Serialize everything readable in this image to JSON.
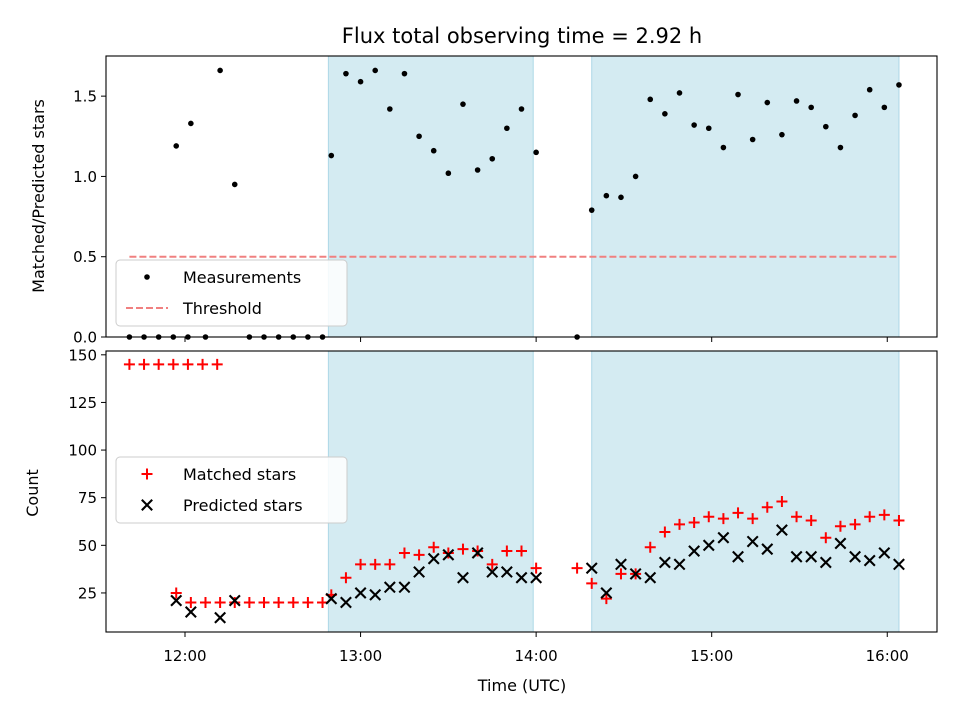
{
  "chart_data": {
    "type": "scatter",
    "title": "Flux total observing time = 2.92 h",
    "xlabel": "Time (UTC)",
    "x_ticks": [
      "12:00",
      "13:00",
      "14:00",
      "15:00",
      "16:00"
    ],
    "xlim": [
      "11:33",
      "16:17"
    ],
    "shaded_intervals": [
      [
        "12:49",
        "13:59"
      ],
      [
        "14:19",
        "16:04"
      ]
    ],
    "shade_color": "#add8e6",
    "panels": [
      {
        "id": "ratio",
        "ylabel": "Matched/Predicted stars",
        "ylim": [
          0,
          1.75
        ],
        "y_ticks": [
          "0.0",
          "0.5",
          "1.0",
          "1.5"
        ],
        "legend": {
          "position": "lower-left",
          "entries": [
            "Measurements",
            "Threshold"
          ]
        },
        "series": [
          {
            "name": "Measurements",
            "marker": "dot",
            "color": "#000000",
            "points": [
              [
                "11:41",
                0.0
              ],
              [
                "11:46",
                0.0
              ],
              [
                "11:51",
                0.0
              ],
              [
                "11:56",
                0.0
              ],
              [
                "12:01",
                0.0
              ],
              [
                "11:57",
                1.19
              ],
              [
                "12:02",
                1.33
              ],
              [
                "12:07",
                0.0
              ],
              [
                "12:12",
                1.66
              ],
              [
                "12:17",
                0.95
              ],
              [
                "12:22",
                0.0
              ],
              [
                "12:27",
                0.0
              ],
              [
                "12:32",
                0.0
              ],
              [
                "12:37",
                0.0
              ],
              [
                "12:42",
                0.0
              ],
              [
                "12:47",
                0.0
              ],
              [
                "12:50",
                1.13
              ],
              [
                "12:55",
                1.64
              ],
              [
                "13:00",
                1.59
              ],
              [
                "13:05",
                1.66
              ],
              [
                "13:10",
                1.42
              ],
              [
                "13:15",
                1.64
              ],
              [
                "13:20",
                1.25
              ],
              [
                "13:25",
                1.16
              ],
              [
                "13:30",
                1.02
              ],
              [
                "13:35",
                1.45
              ],
              [
                "13:40",
                1.04
              ],
              [
                "13:45",
                1.11
              ],
              [
                "13:50",
                1.3
              ],
              [
                "13:55",
                1.42
              ],
              [
                "14:00",
                1.15
              ],
              [
                "14:14",
                0.0
              ],
              [
                "14:19",
                0.79
              ],
              [
                "14:24",
                0.88
              ],
              [
                "14:29",
                0.87
              ],
              [
                "14:34",
                1.0
              ],
              [
                "14:39",
                1.48
              ],
              [
                "14:44",
                1.39
              ],
              [
                "14:49",
                1.52
              ],
              [
                "14:54",
                1.32
              ],
              [
                "14:59",
                1.3
              ],
              [
                "15:04",
                1.18
              ],
              [
                "15:09",
                1.51
              ],
              [
                "15:14",
                1.23
              ],
              [
                "15:19",
                1.46
              ],
              [
                "15:24",
                1.26
              ],
              [
                "15:29",
                1.47
              ],
              [
                "15:34",
                1.43
              ],
              [
                "15:39",
                1.31
              ],
              [
                "15:44",
                1.18
              ],
              [
                "15:49",
                1.38
              ],
              [
                "15:54",
                1.54
              ],
              [
                "15:59",
                1.43
              ],
              [
                "16:04",
                1.57
              ]
            ]
          },
          {
            "name": "Threshold",
            "type": "hline",
            "style": "dashed",
            "color": "#f08080",
            "y": 0.5,
            "x_range": [
              "11:41",
              "16:04"
            ]
          }
        ]
      },
      {
        "id": "counts",
        "ylabel": "Count",
        "ylim": [
          4.5,
          152
        ],
        "y_ticks": [
          "25",
          "50",
          "75",
          "100",
          "125",
          "150"
        ],
        "legend": {
          "position": "center-left",
          "entries": [
            "Matched stars",
            "Predicted stars"
          ]
        },
        "series": [
          {
            "name": "Matched stars",
            "marker": "plus",
            "color": "#ff0000",
            "points": [
              [
                "11:41",
                145
              ],
              [
                "11:46",
                145
              ],
              [
                "11:51",
                145
              ],
              [
                "11:56",
                145
              ],
              [
                "12:01",
                145
              ],
              [
                "12:06",
                145
              ],
              [
                "12:11",
                145
              ],
              [
                "11:57",
                25
              ],
              [
                "12:02",
                20
              ],
              [
                "12:07",
                20
              ],
              [
                "12:12",
                20
              ],
              [
                "12:17",
                20
              ],
              [
                "12:22",
                20
              ],
              [
                "12:27",
                20
              ],
              [
                "12:32",
                20
              ],
              [
                "12:37",
                20
              ],
              [
                "12:42",
                20
              ],
              [
                "12:47",
                20
              ],
              [
                "12:50",
                24
              ],
              [
                "12:55",
                33
              ],
              [
                "13:00",
                40
              ],
              [
                "13:05",
                40
              ],
              [
                "13:10",
                40
              ],
              [
                "13:15",
                46
              ],
              [
                "13:20",
                45
              ],
              [
                "13:25",
                49
              ],
              [
                "13:30",
                46
              ],
              [
                "13:35",
                48
              ],
              [
                "13:40",
                47
              ],
              [
                "13:45",
                40
              ],
              [
                "13:50",
                47
              ],
              [
                "13:55",
                47
              ],
              [
                "14:00",
                38
              ],
              [
                "14:14",
                38
              ],
              [
                "14:19",
                30
              ],
              [
                "14:24",
                22
              ],
              [
                "14:29",
                35
              ],
              [
                "14:34",
                35
              ],
              [
                "14:39",
                49
              ],
              [
                "14:44",
                57
              ],
              [
                "14:49",
                61
              ],
              [
                "14:54",
                62
              ],
              [
                "14:59",
                65
              ],
              [
                "15:04",
                64
              ],
              [
                "15:09",
                67
              ],
              [
                "15:14",
                64
              ],
              [
                "15:19",
                70
              ],
              [
                "15:24",
                73
              ],
              [
                "15:29",
                65
              ],
              [
                "15:34",
                63
              ],
              [
                "15:39",
                54
              ],
              [
                "15:44",
                60
              ],
              [
                "15:49",
                61
              ],
              [
                "15:54",
                65
              ],
              [
                "15:59",
                66
              ],
              [
                "16:04",
                63
              ]
            ]
          },
          {
            "name": "Predicted stars",
            "marker": "x",
            "color": "#000000",
            "points": [
              [
                "11:57",
                21
              ],
              [
                "12:02",
                15
              ],
              [
                "12:12",
                12
              ],
              [
                "12:17",
                21
              ],
              [
                "12:50",
                22
              ],
              [
                "12:55",
                20
              ],
              [
                "13:00",
                25
              ],
              [
                "13:05",
                24
              ],
              [
                "13:10",
                28
              ],
              [
                "13:15",
                28
              ],
              [
                "13:20",
                36
              ],
              [
                "13:25",
                43
              ],
              [
                "13:30",
                45
              ],
              [
                "13:35",
                33
              ],
              [
                "13:40",
                46
              ],
              [
                "13:45",
                36
              ],
              [
                "13:50",
                36
              ],
              [
                "13:55",
                33
              ],
              [
                "14:00",
                33
              ],
              [
                "14:19",
                38
              ],
              [
                "14:24",
                25
              ],
              [
                "14:29",
                40
              ],
              [
                "14:34",
                35
              ],
              [
                "14:39",
                33
              ],
              [
                "14:44",
                41
              ],
              [
                "14:49",
                40
              ],
              [
                "14:54",
                47
              ],
              [
                "14:59",
                50
              ],
              [
                "15:04",
                54
              ],
              [
                "15:09",
                44
              ],
              [
                "15:14",
                52
              ],
              [
                "15:19",
                48
              ],
              [
                "15:24",
                58
              ],
              [
                "15:29",
                44
              ],
              [
                "15:34",
                44
              ],
              [
                "15:39",
                41
              ],
              [
                "15:44",
                51
              ],
              [
                "15:49",
                44
              ],
              [
                "15:54",
                42
              ],
              [
                "15:59",
                46
              ],
              [
                "16:04",
                40
              ]
            ]
          }
        ]
      }
    ]
  }
}
